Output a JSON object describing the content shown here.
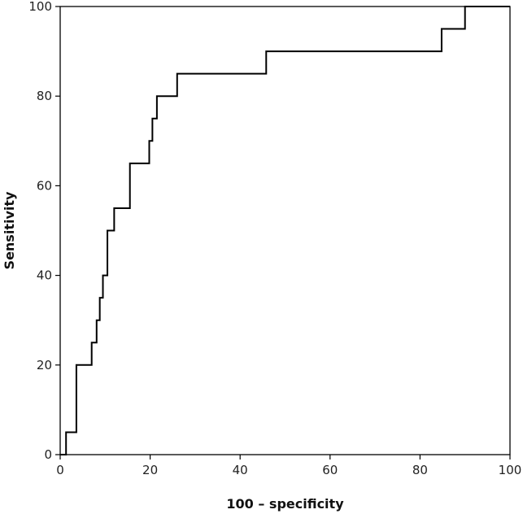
{
  "chart_data": {
    "type": "line",
    "title": "",
    "xlabel": "100 – specificity",
    "ylabel": "Sensitivity",
    "xlim": [
      0,
      100
    ],
    "ylim": [
      0,
      100
    ],
    "x_ticks": [
      0,
      20,
      40,
      60,
      80,
      100
    ],
    "y_ticks": [
      0,
      20,
      40,
      60,
      80,
      100
    ],
    "grid": false,
    "legend": "none",
    "line_color": "#000000",
    "series": [
      {
        "x": [
          0,
          1.3,
          1.3,
          3.6,
          3.6,
          7.0,
          7.0,
          8.1,
          8.1,
          8.8,
          8.8,
          9.5,
          9.5,
          10.5,
          10.5,
          12.0,
          12.0,
          15.5,
          15.5,
          19.8,
          19.8,
          20.5,
          20.5,
          21.5,
          21.5,
          26.0,
          26.0,
          45.8,
          45.8,
          84.8,
          84.8,
          90.0,
          90.0,
          100
        ],
        "y": [
          0,
          0,
          5,
          5,
          20,
          20,
          25,
          25,
          30,
          30,
          35,
          35,
          40,
          40,
          50,
          50,
          55,
          55,
          65,
          65,
          70,
          70,
          75,
          75,
          80,
          80,
          85,
          85,
          90,
          90,
          95,
          95,
          100,
          100
        ]
      }
    ]
  }
}
